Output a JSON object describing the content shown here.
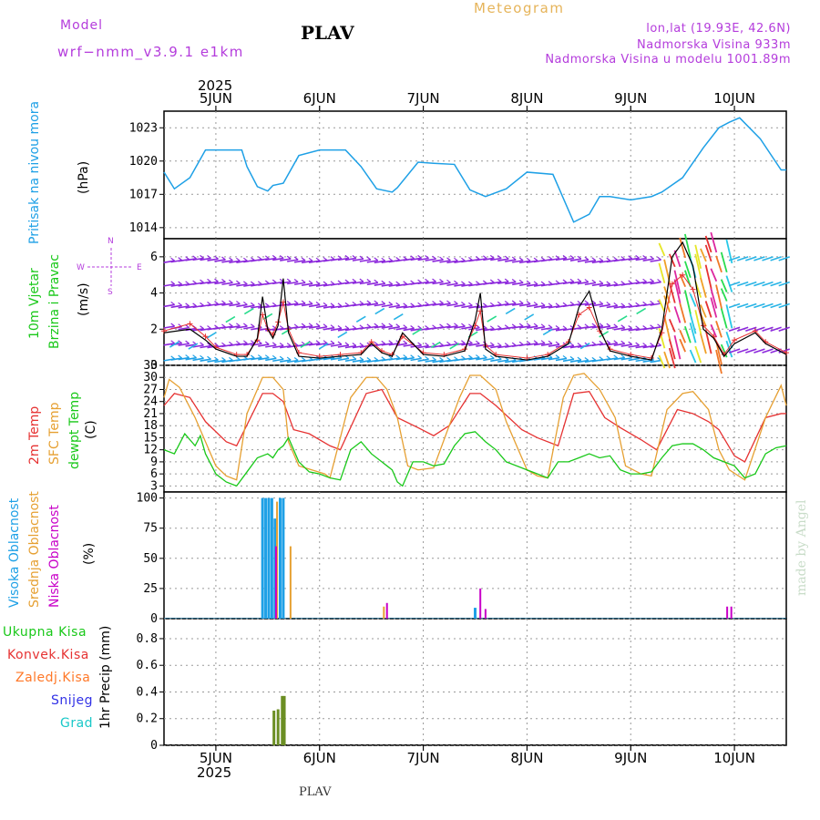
{
  "header": {
    "model_label": "Model",
    "model_name": "wrf−nmm_v3.9.1 e1km",
    "station": "PLAV",
    "app_title": "Meteogram",
    "coords": "lon,lat (19.93E, 42.6N)",
    "elevation": "Nadmorska Visina 933m",
    "model_elevation": "Nadmorska Visina u modelu 1001.89m",
    "watermark": "made by Angel",
    "footer_station": "PLAV"
  },
  "time_axis": {
    "year": "2025",
    "days": [
      "5JUN",
      "6JUN",
      "7JUN",
      "8JUN",
      "9JUN",
      "10JUN"
    ]
  },
  "colors": {
    "pressure": "#1ea0e6",
    "temp2m": "#e63232",
    "sfc": "#e6a032",
    "dewpt": "#19c819",
    "precip": "#6b8e23",
    "cloud_high": "#1ea0e6",
    "cloud_mid": "#e6a032",
    "cloud_low": "#c800c8"
  },
  "panels": {
    "pressure": {
      "title": "Pritisak na nivou mora",
      "unit": "(hPa)",
      "ticks": [
        "1014",
        "1017",
        "1020",
        "1023"
      ]
    },
    "wind": {
      "title1": "10m Vjetar",
      "title2": "Brzina i Pravac",
      "unit": "(m/s)",
      "compass_n": "N",
      "compass_w": "W",
      "compass_e": "E",
      "compass_s": "S",
      "ticks": [
        "0",
        "2",
        "4",
        "6"
      ]
    },
    "temperature": {
      "label_2m": "2m Temp",
      "label_sfc": "SFC Temp",
      "label_dew": "dewpt Temp",
      "unit": "(C)",
      "ticks": [
        "3",
        "6",
        "9",
        "12",
        "15",
        "18",
        "21",
        "24",
        "27",
        "30",
        "33"
      ]
    },
    "cloud": {
      "label_high": "Visoka Oblacnost",
      "label_mid": "Srednja Oblacnost",
      "label_low": "Niska Oblacnost",
      "unit": "(%)",
      "ticks": [
        "0",
        "25",
        "50",
        "75",
        "100"
      ]
    },
    "precip": {
      "label_total": "Ukupna Kisa",
      "label_conv": "Konvek.Kisa",
      "label_frozen": "Zaledj.Kisa",
      "label_snow": "Snijeg",
      "label_hail": "Grad",
      "unit": "1hr Precip (mm)",
      "ticks": [
        "0",
        "0.2",
        "0.4",
        "0.6",
        "0.8"
      ]
    }
  },
  "chart_data": [
    {
      "type": "line",
      "id": "pressure",
      "ylabel": "(hPa)",
      "ylim": [
        1013,
        1024.5
      ],
      "series": [
        {
          "name": "Pritisak na nivou mora",
          "x": [
            4.5,
            4.6,
            4.75,
            4.9,
            5.0,
            5.25,
            5.3,
            5.4,
            5.5,
            5.55,
            5.65,
            5.8,
            6.0,
            6.25,
            6.4,
            6.55,
            6.7,
            6.75,
            6.95,
            7.1,
            7.3,
            7.45,
            7.6,
            7.8,
            8.0,
            8.25,
            8.45,
            8.6,
            8.7,
            8.8,
            9.0,
            9.2,
            9.3,
            9.5,
            9.7,
            9.85,
            9.95,
            10.05,
            10.25,
            10.45,
            10.5
          ],
          "y": [
            1019,
            1017.5,
            1018.5,
            1021,
            1021,
            1021,
            1019.5,
            1017.7,
            1017.3,
            1017.8,
            1018,
            1020.5,
            1021,
            1021,
            1019.5,
            1017.5,
            1017.2,
            1017.6,
            1019.9,
            1019.8,
            1019.7,
            1017.4,
            1016.8,
            1017.5,
            1019,
            1018.8,
            1014.5,
            1015.2,
            1016.8,
            1016.8,
            1016.5,
            1016.8,
            1017.2,
            1018.5,
            1021.2,
            1023,
            1023.5,
            1023.9,
            1022,
            1019.2,
            1019.2
          ]
        }
      ]
    },
    {
      "type": "line",
      "id": "wind_speed",
      "ylabel": "(m/s)",
      "ylim": [
        0,
        7
      ],
      "series": [
        {
          "name": "10m Vjetar Brzina",
          "x": [
            4.5,
            4.75,
            4.9,
            5.0,
            5.2,
            5.3,
            5.4,
            5.45,
            5.5,
            5.55,
            5.6,
            5.65,
            5.7,
            5.8,
            6.0,
            6.2,
            6.4,
            6.5,
            6.6,
            6.7,
            6.8,
            7.0,
            7.2,
            7.4,
            7.5,
            7.55,
            7.6,
            7.7,
            8.0,
            8.2,
            8.4,
            8.5,
            8.6,
            8.7,
            8.8,
            9.0,
            9.2,
            9.3,
            9.4,
            9.5,
            9.6,
            9.7,
            9.8,
            9.9,
            10.0,
            10.2,
            10.3,
            10.5
          ],
          "y": [
            1.8,
            2.0,
            1.4,
            0.9,
            0.5,
            0.5,
            1.5,
            3.8,
            2.0,
            1.5,
            2.2,
            4.8,
            1.8,
            0.5,
            0.4,
            0.5,
            0.6,
            1.2,
            0.7,
            0.5,
            1.8,
            0.6,
            0.5,
            0.8,
            2.5,
            4.0,
            0.9,
            0.5,
            0.3,
            0.5,
            1.2,
            3.2,
            4.1,
            2.0,
            0.8,
            0.5,
            0.3,
            2.0,
            6.0,
            6.8,
            5.5,
            2.0,
            1.5,
            0.5,
            1.2,
            1.8,
            1.2,
            0.6
          ]
        },
        {
          "name": "Temp",
          "x": [
            4.5,
            4.75,
            4.9,
            5.0,
            5.2,
            5.3,
            5.4,
            5.45,
            5.5,
            5.55,
            5.6,
            5.65,
            5.7,
            5.8,
            6.0,
            6.2,
            6.4,
            6.5,
            6.6,
            6.7,
            6.8,
            7.0,
            7.2,
            7.4,
            7.5,
            7.55,
            7.6,
            7.7,
            8.0,
            8.2,
            8.4,
            8.5,
            8.6,
            8.7,
            8.8,
            9.0,
            9.2,
            9.3,
            9.4,
            9.5,
            9.6,
            9.7,
            9.8,
            9.9,
            10.0,
            10.2,
            10.3,
            10.5
          ],
          "y": [
            1.9,
            2.3,
            1.6,
            1.0,
            0.6,
            0.6,
            1.4,
            2.8,
            2.0,
            1.7,
            2.4,
            3.5,
            2.0,
            0.7,
            0.5,
            0.6,
            0.7,
            1.3,
            0.8,
            0.6,
            1.6,
            0.7,
            0.6,
            0.9,
            2.2,
            3.0,
            1.1,
            0.6,
            0.4,
            0.6,
            1.3,
            2.8,
            3.2,
            1.9,
            0.9,
            0.6,
            0.4,
            1.8,
            4.5,
            5.0,
            4.2,
            2.2,
            1.6,
            0.6,
            1.4,
            1.9,
            1.3,
            0.7
          ]
        }
      ]
    },
    {
      "type": "line",
      "id": "temperature",
      "ylabel": "(C)",
      "ylim": [
        1.5,
        33
      ],
      "series": [
        {
          "name": "2m Temp",
          "x": [
            4.5,
            4.6,
            4.75,
            4.9,
            5.1,
            5.2,
            5.45,
            5.55,
            5.65,
            5.75,
            5.9,
            6.1,
            6.2,
            6.45,
            6.6,
            6.75,
            6.95,
            7.1,
            7.25,
            7.45,
            7.55,
            7.7,
            7.95,
            8.1,
            8.3,
            8.45,
            8.6,
            8.75,
            8.9,
            9.1,
            9.25,
            9.45,
            9.6,
            9.75,
            9.85,
            10.0,
            10.1,
            10.3,
            10.45,
            10.5
          ],
          "y": [
            23,
            26,
            25,
            19,
            14,
            13,
            26,
            26,
            24,
            17,
            16,
            13,
            12,
            26,
            27,
            20,
            17.5,
            15.5,
            18,
            26,
            26,
            23,
            17,
            15,
            13,
            26,
            26.5,
            20,
            17.5,
            14.5,
            12,
            22,
            21,
            19,
            17,
            10.5,
            9,
            20,
            21,
            21
          ]
        },
        {
          "name": "SFC Temp",
          "x": [
            4.5,
            4.55,
            4.65,
            4.8,
            4.9,
            5.0,
            5.1,
            5.2,
            5.3,
            5.45,
            5.55,
            5.65,
            5.7,
            5.8,
            6.05,
            6.1,
            6.2,
            6.3,
            6.45,
            6.55,
            6.65,
            6.75,
            6.85,
            6.95,
            7.1,
            7.25,
            7.35,
            7.45,
            7.55,
            7.7,
            7.8,
            8.0,
            8.1,
            8.2,
            8.35,
            8.45,
            8.55,
            8.7,
            8.85,
            8.95,
            9.1,
            9.2,
            9.35,
            9.5,
            9.6,
            9.75,
            9.85,
            9.95,
            10.1,
            10.3,
            10.45,
            10.5
          ],
          "y": [
            25,
            29.5,
            27.5,
            20,
            14,
            8,
            5.5,
            4.5,
            21,
            30,
            30,
            27,
            14,
            8,
            6,
            5,
            15,
            25,
            30,
            30,
            27,
            20,
            8,
            7,
            7.5,
            18,
            25,
            30.5,
            30.5,
            27,
            19,
            7,
            5.5,
            5,
            25,
            30.5,
            31,
            27,
            20,
            8,
            6,
            5.5,
            22,
            26,
            26.5,
            22,
            12,
            7,
            4.5,
            20,
            28,
            23
          ]
        },
        {
          "name": "dewpt Temp",
          "x": [
            4.5,
            4.6,
            4.7,
            4.8,
            4.85,
            4.9,
            5.0,
            5.1,
            5.2,
            5.3,
            5.4,
            5.5,
            5.55,
            5.6,
            5.65,
            5.7,
            5.8,
            5.9,
            6.0,
            6.1,
            6.2,
            6.3,
            6.4,
            6.5,
            6.6,
            6.65,
            6.7,
            6.75,
            6.8,
            6.9,
            7.0,
            7.1,
            7.2,
            7.3,
            7.4,
            7.5,
            7.6,
            7.7,
            7.8,
            8.0,
            8.1,
            8.2,
            8.3,
            8.4,
            8.5,
            8.6,
            8.7,
            8.8,
            8.9,
            9.0,
            9.1,
            9.2,
            9.3,
            9.4,
            9.5,
            9.6,
            9.7,
            9.8,
            9.9,
            10.0,
            10.1,
            10.2,
            10.3,
            10.4,
            10.5
          ],
          "y": [
            12,
            11,
            16,
            13,
            15.5,
            11,
            6,
            4,
            3,
            6.5,
            10,
            11,
            10,
            12,
            13,
            15,
            9,
            6.5,
            6,
            5,
            4.5,
            12,
            14,
            11,
            9,
            8,
            7,
            4,
            3,
            9,
            9,
            8,
            8.5,
            13,
            16,
            16.5,
            14,
            12,
            9,
            7,
            6,
            5,
            9,
            9,
            10,
            11,
            10,
            10.5,
            7,
            6,
            6,
            6.5,
            10,
            13,
            13.5,
            13.5,
            12,
            10,
            9,
            8,
            5,
            6,
            11,
            12.5,
            13
          ]
        }
      ]
    },
    {
      "type": "bar",
      "id": "cloud",
      "ylabel": "(%)",
      "ylim": [
        0,
        105
      ],
      "series": [
        {
          "name": "Visoka Oblacnost",
          "x": [
            5.45,
            5.48,
            5.51,
            5.54,
            5.57,
            5.62,
            5.65,
            7.5
          ],
          "y": [
            100,
            100,
            100,
            100,
            83,
            100,
            100,
            9
          ]
        },
        {
          "name": "Srednja Oblacnost",
          "x": [
            5.59,
            5.72,
            6.62
          ],
          "y": [
            97,
            60,
            10
          ]
        },
        {
          "name": "Niska Oblacnost",
          "x": [
            5.58,
            6.65,
            7.55,
            7.6,
            9.93,
            9.97
          ],
          "y": [
            60,
            13,
            25,
            8,
            10,
            10
          ]
        }
      ]
    },
    {
      "type": "bar",
      "id": "precip",
      "ylabel": "1hr Precip (mm)",
      "ylim": [
        0,
        0.95
      ],
      "series": [
        {
          "name": "Ukupna Kisa",
          "x": [
            5.56,
            5.6,
            5.64,
            5.66
          ],
          "y": [
            0.26,
            0.27,
            0.37,
            0.37
          ]
        }
      ]
    }
  ]
}
